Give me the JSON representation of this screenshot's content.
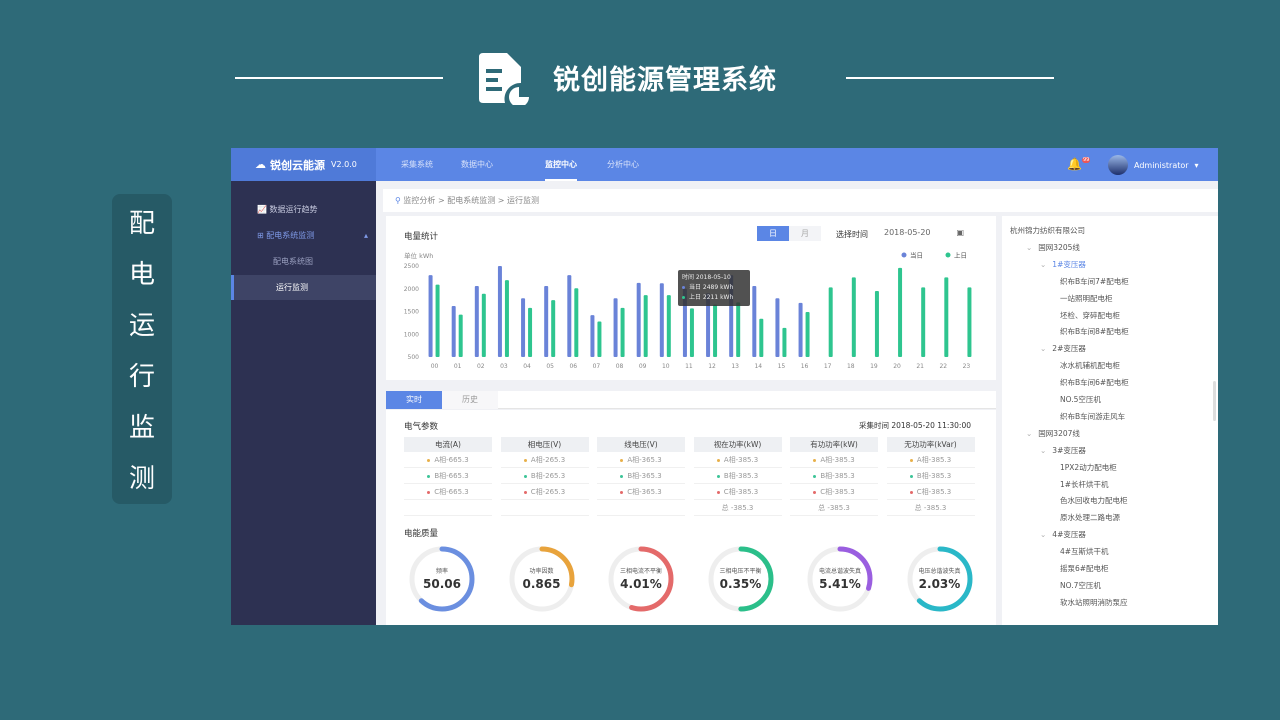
{
  "slide": {
    "title": "锐创能源管理系统",
    "side_label": [
      "配",
      "电",
      "运",
      "行",
      "监",
      "测"
    ]
  },
  "app": {
    "brand": "锐创云能源",
    "version": "V2.0.0",
    "nav": [
      {
        "label": "采集系统"
      },
      {
        "label": "数据中心"
      },
      {
        "label": "监控中心",
        "active": true
      },
      {
        "label": "分析中心"
      }
    ],
    "user": "Administrator",
    "notification_badge": "99",
    "sidebar": [
      {
        "label": "数据运行趋势",
        "icon": "chart-icon"
      },
      {
        "label": "配电系统监测",
        "icon": "plus-box-icon",
        "expanded": true
      },
      {
        "label": "配电系统图",
        "sub": true
      },
      {
        "label": "运行监测",
        "sub": true,
        "selected": true
      }
    ],
    "breadcrumb": "监控分析 > 配电系统监测 > 运行监测",
    "energy": {
      "title": "电量统计",
      "mode_tabs": [
        "日",
        "月"
      ],
      "mode_selected": "日",
      "time_label": "选择时间",
      "date": "2018-05-20",
      "unit": "单位  kWh",
      "tooltip": {
        "time": "时间 2018-05-10",
        "today": "当日 2489 kWh",
        "yesterday": "上日 2211 kWh"
      }
    },
    "tabs": [
      "实时",
      "历史"
    ],
    "params": {
      "title": "电气参数",
      "time": "采集时间  2018-05-20  11:30:00",
      "columns": [
        {
          "header": "电流(A)",
          "rows": [
            "A相-665.3",
            "B相-665.3",
            "C相-665.3",
            ""
          ]
        },
        {
          "header": "相电压(V)",
          "rows": [
            "A相-265.3",
            "B相-265.3",
            "C相-265.3",
            ""
          ]
        },
        {
          "header": "线电压(V)",
          "rows": [
            "A相-365.3",
            "B相-365.3",
            "C相-365.3",
            ""
          ]
        },
        {
          "header": "视在功率(kW)",
          "rows": [
            "A相-385.3",
            "B相-385.3",
            "C相-385.3",
            "总 -385.3"
          ]
        },
        {
          "header": "有功功率(kW)",
          "rows": [
            "A相-385.3",
            "B相-385.3",
            "C相-385.3",
            "总 -385.3"
          ]
        },
        {
          "header": "无功功率(kVar)",
          "rows": [
            "A相-385.3",
            "B相-385.3",
            "C相-385.3",
            "总 -385.3"
          ]
        }
      ],
      "phase_colors": [
        "#e8b04a",
        "#3cc497",
        "#e46a6a"
      ]
    },
    "quality": {
      "title": "电能质量",
      "gauges": [
        {
          "label": "频率",
          "value": "50.06",
          "fill": 0.62,
          "color": "#6b8fe0"
        },
        {
          "label": "功率因数",
          "value": "0.865",
          "fill": 0.28,
          "color": "#e8a33c"
        },
        {
          "label": "三相电流不平衡",
          "value": "4.01%",
          "fill": 0.55,
          "color": "#e46a6a"
        },
        {
          "label": "三相电压不平衡",
          "value": "0.35%",
          "fill": 0.5,
          "color": "#2bbf8a"
        },
        {
          "label": "电流总谐波失真",
          "value": "5.41%",
          "fill": 0.3,
          "color": "#9a5ee0"
        },
        {
          "label": "电压总谐波失真",
          "value": "2.03%",
          "fill": 0.62,
          "color": "#2ab8c8"
        }
      ]
    },
    "tree": [
      {
        "label": "杭州锦力纺织有限公司",
        "level": 0
      },
      {
        "label": "国网3205线",
        "level": 1
      },
      {
        "label": "1#变压器",
        "level": 2,
        "active": true
      },
      {
        "label": "织布B车间7#配电柜",
        "level": 3
      },
      {
        "label": "一站照明配电柜",
        "level": 3
      },
      {
        "label": "坯检、穿碎配电柜",
        "level": 3
      },
      {
        "label": "织布B车间8#配电柜",
        "level": 3
      },
      {
        "label": "2#变压器",
        "level": 2
      },
      {
        "label": "冰水机辅机配电柜",
        "level": 3
      },
      {
        "label": "织布B车间6#配电柜",
        "level": 3
      },
      {
        "label": "NO.5空压机",
        "level": 3
      },
      {
        "label": "织布B车间游走风车",
        "level": 3
      },
      {
        "label": "国网3207线",
        "level": 1
      },
      {
        "label": "3#变压器",
        "level": 2
      },
      {
        "label": "1PX2动力配电柜",
        "level": 3
      },
      {
        "label": "1#长杆烘干机",
        "level": 3
      },
      {
        "label": "色水回收电力配电柜",
        "level": 3
      },
      {
        "label": "原水处理二路电源",
        "level": 3
      },
      {
        "label": "4#变压器",
        "level": 2
      },
      {
        "label": "4#互斯烘干机",
        "level": 3
      },
      {
        "label": "摇泵6#配电柜",
        "level": 3
      },
      {
        "label": "NO.7空压机",
        "level": 3
      },
      {
        "label": "软水站照明消防泵应",
        "level": 3
      }
    ]
  },
  "chart_data": {
    "type": "bar",
    "title": "电量统计",
    "ylabel": "单位  kWh",
    "ylim": [
      500,
      2500
    ],
    "yticks": [
      500,
      1000,
      1500,
      2000,
      2500
    ],
    "categories": [
      "00",
      "01",
      "02",
      "03",
      "04",
      "05",
      "06",
      "07",
      "08",
      "09",
      "10",
      "11",
      "12",
      "13",
      "14",
      "15",
      "16",
      "17",
      "18",
      "19",
      "20",
      "21",
      "22",
      "23"
    ],
    "legend_position": "top-right",
    "series": [
      {
        "name": "当日",
        "color": "#6a83d8",
        "values": [
          2300,
          1620,
          2060,
          2500,
          1790,
          2060,
          2300,
          1420,
          1790,
          2130,
          2120,
          2000,
          1900,
          2300,
          2060,
          1790,
          1690,
          null,
          null,
          null,
          null,
          null,
          null,
          null
        ]
      },
      {
        "name": "上日",
        "color": "#2ec58f",
        "values": [
          2090,
          1430,
          1890,
          2190,
          1580,
          1750,
          2010,
          1280,
          1580,
          1860,
          1860,
          1570,
          1650,
          1700,
          1340,
          1140,
          1490,
          2030,
          2250,
          1950,
          2460,
          2030,
          2250,
          2030
        ]
      }
    ]
  }
}
